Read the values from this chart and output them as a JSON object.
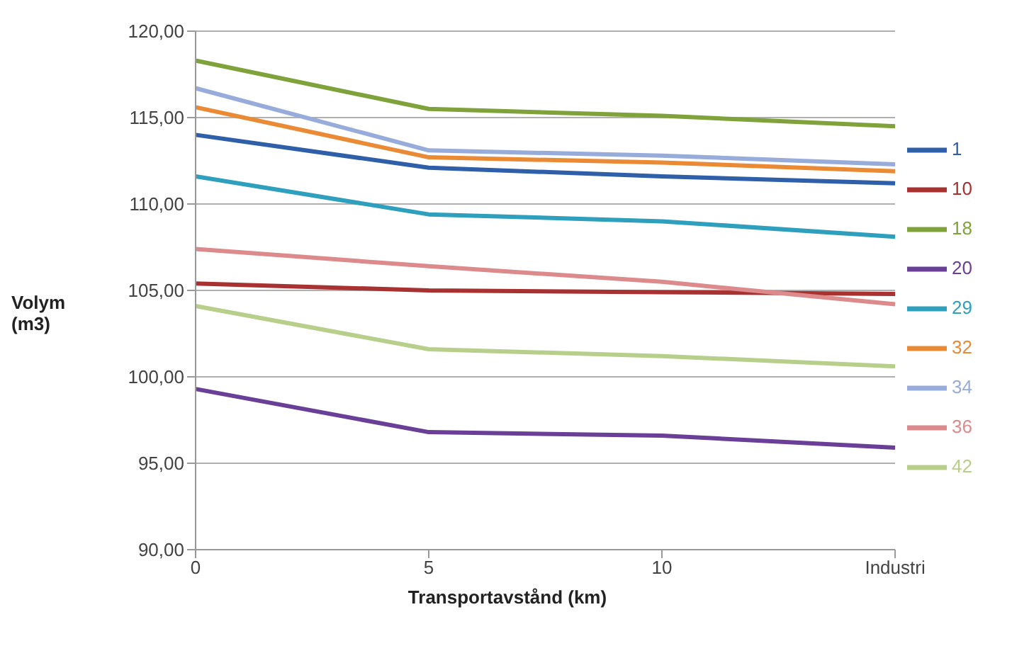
{
  "chart_data": {
    "type": "line",
    "xlabel": "Transportavstånd (km)",
    "ylabel": "Volym (m3)",
    "categories": [
      "0",
      "5",
      "10",
      "Industri"
    ],
    "ylim": [
      90,
      120
    ],
    "yticks": [
      {
        "value": 90,
        "label": "90,00"
      },
      {
        "value": 95,
        "label": "95,00"
      },
      {
        "value": 100,
        "label": "100,00"
      },
      {
        "value": 105,
        "label": "105,00"
      },
      {
        "value": 110,
        "label": "110,00"
      },
      {
        "value": 115,
        "label": "115,00"
      },
      {
        "value": 120,
        "label": "120,00"
      }
    ],
    "grid": "y",
    "legend": "right",
    "marker": "none",
    "line_style": "solid",
    "series": [
      {
        "name": "1",
        "color": "#2f5fa8",
        "values": [
          114.0,
          112.1,
          111.6,
          111.2
        ]
      },
      {
        "name": "10",
        "color": "#a83232",
        "values": [
          105.4,
          105.0,
          104.9,
          104.8
        ]
      },
      {
        "name": "18",
        "color": "#7fa33a",
        "values": [
          118.3,
          115.5,
          115.1,
          114.5
        ]
      },
      {
        "name": "20",
        "color": "#6a3f98",
        "values": [
          99.3,
          96.8,
          96.6,
          95.9
        ]
      },
      {
        "name": "29",
        "color": "#2ea0bd",
        "values": [
          111.6,
          109.4,
          109.0,
          108.1
        ]
      },
      {
        "name": "32",
        "color": "#eb8a35",
        "values": [
          115.6,
          112.7,
          112.4,
          111.9
        ]
      },
      {
        "name": "34",
        "color": "#98acdb",
        "values": [
          116.7,
          113.1,
          112.8,
          112.3
        ]
      },
      {
        "name": "36",
        "color": "#dc8a8c",
        "values": [
          107.4,
          106.4,
          105.5,
          104.2
        ]
      },
      {
        "name": "42",
        "color": "#b7cf8a",
        "values": [
          104.1,
          101.6,
          101.2,
          100.6
        ]
      }
    ]
  }
}
